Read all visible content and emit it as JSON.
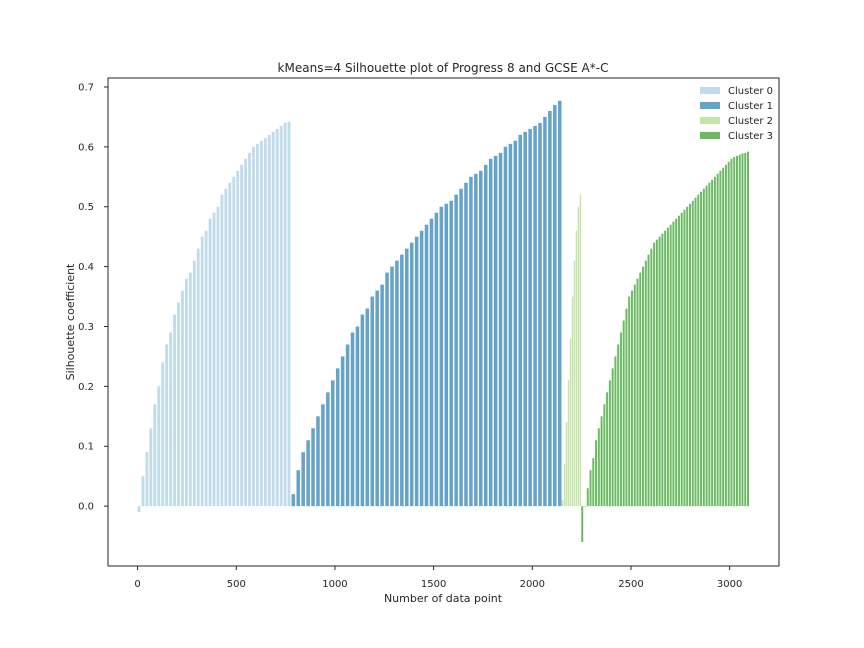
{
  "chart_data": {
    "type": "bar",
    "title": "kMeans=4 Silhouette plot of Progress 8 and GCSE A*-C",
    "xlabel": "Number of data point",
    "ylabel": "Silhouette coefficient",
    "xlim": [
      -150,
      3250
    ],
    "ylim": [
      -0.1,
      0.715
    ],
    "xticks": [
      0,
      500,
      1000,
      1500,
      2000,
      2500,
      3000
    ],
    "yticks": [
      0.0,
      0.1,
      0.2,
      0.3,
      0.4,
      0.5,
      0.6,
      0.7
    ],
    "grid": false,
    "legend_position": "top-right",
    "series": [
      {
        "name": "Cluster 0",
        "color": "#c0dbe9",
        "x": [
          0,
          20,
          40,
          60,
          80,
          100,
          120,
          140,
          160,
          180,
          200,
          220,
          240,
          260,
          280,
          300,
          320,
          340,
          360,
          380,
          400,
          420,
          440,
          460,
          480,
          500,
          520,
          540,
          560,
          580,
          600,
          620,
          640,
          660,
          680,
          700,
          720,
          740,
          760
        ],
        "values": [
          -0.01,
          0.05,
          0.09,
          0.13,
          0.17,
          0.2,
          0.24,
          0.27,
          0.29,
          0.32,
          0.34,
          0.36,
          0.38,
          0.39,
          0.41,
          0.43,
          0.45,
          0.46,
          0.48,
          0.49,
          0.5,
          0.52,
          0.53,
          0.54,
          0.55,
          0.56,
          0.57,
          0.58,
          0.59,
          0.6,
          0.605,
          0.61,
          0.615,
          0.62,
          0.625,
          0.63,
          0.635,
          0.64,
          0.642
        ]
      },
      {
        "name": "Cluster 1",
        "color": "#66a3c9",
        "x": [
          780,
          805,
          830,
          855,
          880,
          905,
          930,
          955,
          980,
          1005,
          1030,
          1055,
          1080,
          1105,
          1130,
          1155,
          1180,
          1205,
          1230,
          1255,
          1280,
          1305,
          1330,
          1355,
          1380,
          1405,
          1430,
          1455,
          1480,
          1505,
          1530,
          1555,
          1580,
          1605,
          1630,
          1655,
          1680,
          1705,
          1730,
          1755,
          1780,
          1805,
          1830,
          1855,
          1880,
          1905,
          1930,
          1955,
          1980,
          2005,
          2030,
          2055,
          2080,
          2105,
          2130
        ],
        "values": [
          0.02,
          0.06,
          0.09,
          0.11,
          0.13,
          0.15,
          0.17,
          0.19,
          0.21,
          0.23,
          0.25,
          0.27,
          0.29,
          0.3,
          0.32,
          0.33,
          0.35,
          0.36,
          0.37,
          0.39,
          0.4,
          0.41,
          0.42,
          0.43,
          0.44,
          0.45,
          0.46,
          0.47,
          0.48,
          0.49,
          0.5,
          0.505,
          0.51,
          0.52,
          0.53,
          0.54,
          0.55,
          0.555,
          0.56,
          0.57,
          0.58,
          0.585,
          0.59,
          0.6,
          0.605,
          0.61,
          0.62,
          0.625,
          0.63,
          0.635,
          0.64,
          0.65,
          0.66,
          0.67,
          0.677
        ]
      },
      {
        "name": "Cluster 2",
        "color": "#c4e4a8",
        "x": [
          2150,
          2160,
          2170,
          2180,
          2190,
          2200,
          2210,
          2220,
          2230,
          2240
        ],
        "values": [
          0.01,
          0.07,
          0.14,
          0.21,
          0.28,
          0.35,
          0.41,
          0.46,
          0.5,
          0.52
        ]
      },
      {
        "name": "Cluster 3",
        "color": "#6dba64",
        "x": [
          2248,
          2262,
          2276,
          2290,
          2304,
          2318,
          2332,
          2346,
          2360,
          2374,
          2388,
          2402,
          2416,
          2430,
          2444,
          2458,
          2472,
          2486,
          2500,
          2514,
          2528,
          2542,
          2556,
          2570,
          2584,
          2598,
          2612,
          2626,
          2640,
          2654,
          2668,
          2682,
          2696,
          2710,
          2724,
          2738,
          2752,
          2766,
          2780,
          2794,
          2808,
          2822,
          2836,
          2850,
          2864,
          2878,
          2892,
          2906,
          2920,
          2934,
          2948,
          2962,
          2976,
          2990,
          3004,
          3018,
          3032,
          3046,
          3060,
          3074,
          3088
        ],
        "values": [
          -0.06,
          0.0,
          0.03,
          0.06,
          0.08,
          0.11,
          0.13,
          0.15,
          0.17,
          0.19,
          0.21,
          0.23,
          0.25,
          0.27,
          0.29,
          0.31,
          0.33,
          0.35,
          0.36,
          0.37,
          0.38,
          0.39,
          0.4,
          0.41,
          0.42,
          0.43,
          0.44,
          0.445,
          0.45,
          0.455,
          0.46,
          0.465,
          0.47,
          0.475,
          0.48,
          0.485,
          0.49,
          0.495,
          0.5,
          0.505,
          0.51,
          0.515,
          0.52,
          0.525,
          0.53,
          0.535,
          0.54,
          0.545,
          0.55,
          0.555,
          0.56,
          0.565,
          0.57,
          0.575,
          0.58,
          0.583,
          0.585,
          0.587,
          0.589,
          0.59,
          0.592
        ]
      }
    ]
  }
}
